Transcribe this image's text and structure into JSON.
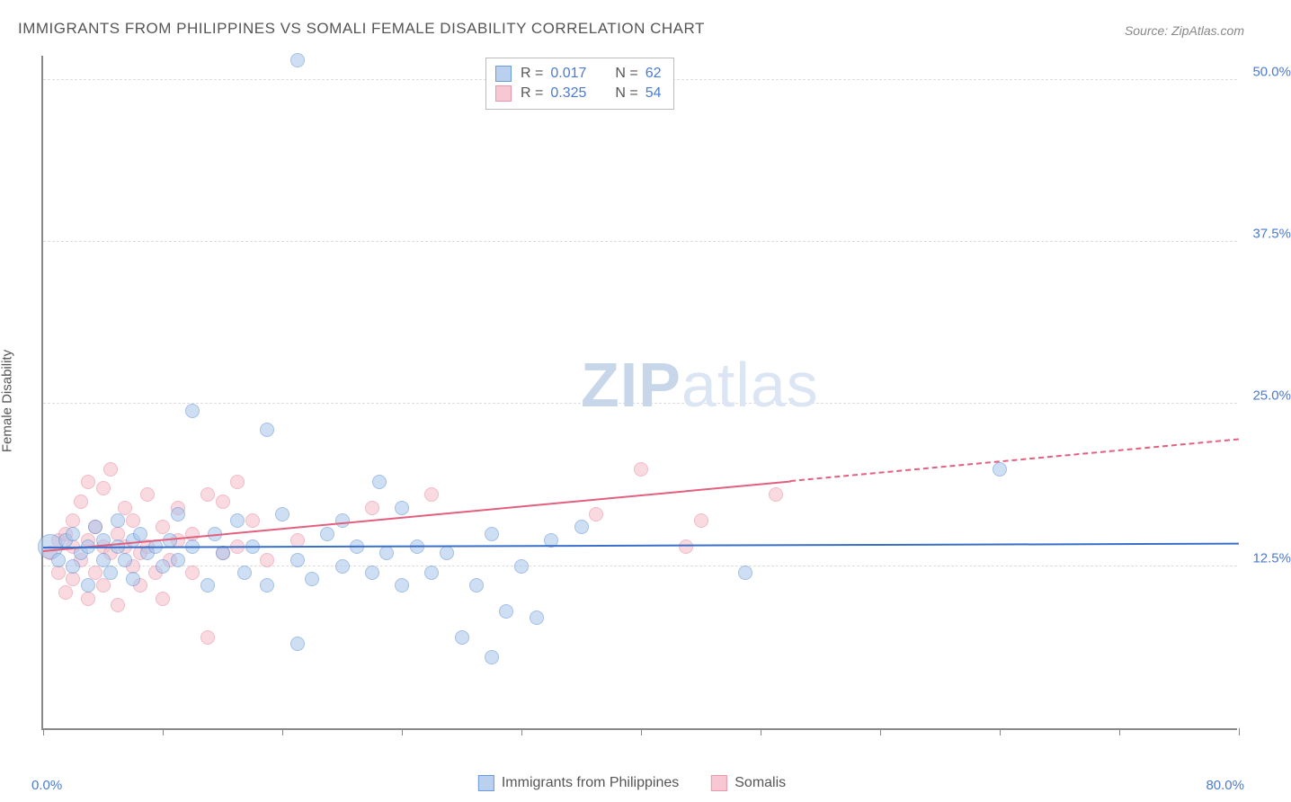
{
  "title": "IMMIGRANTS FROM PHILIPPINES VS SOMALI FEMALE DISABILITY CORRELATION CHART",
  "source_label": "Source:",
  "source_name": "ZipAtlas.com",
  "y_axis_title": "Female Disability",
  "watermark_bold": "ZIP",
  "watermark_light": "atlas",
  "chart": {
    "type": "scatter",
    "background_color": "#ffffff",
    "grid_color": "#dddddd",
    "axis_color": "#888888",
    "xlim": [
      0,
      80
    ],
    "ylim": [
      0,
      52
    ],
    "x_axis_min_label": "0.0%",
    "x_axis_max_label": "80.0%",
    "xtick_positions": [
      0,
      8,
      16,
      24,
      32,
      40,
      48,
      56,
      64,
      72,
      80
    ],
    "yticks": [
      {
        "value": 12.5,
        "label": "12.5%"
      },
      {
        "value": 25.0,
        "label": "25.0%"
      },
      {
        "value": 37.5,
        "label": "37.5%"
      },
      {
        "value": 50.0,
        "label": "50.0%"
      }
    ],
    "tick_label_color": "#4a7bd0",
    "point_radius": 8,
    "point_opacity": 0.55,
    "large_point_radius": 14
  },
  "series": [
    {
      "name": "Immigrants from Philippines",
      "color_fill": "#a8c5eb",
      "color_stroke": "#5a8cd4",
      "swatch_fill": "#b9d1ef",
      "swatch_border": "#6a9bdc",
      "R": "0.017",
      "N": "62",
      "trend": {
        "x1": 0,
        "y1": 13.9,
        "x2": 80,
        "y2": 14.2,
        "solid_until_x": 80,
        "color": "#3a6fc9"
      },
      "points": [
        {
          "x": 0.5,
          "y": 14,
          "r": 14
        },
        {
          "x": 1,
          "y": 13
        },
        {
          "x": 1.5,
          "y": 14.5
        },
        {
          "x": 2,
          "y": 12.5
        },
        {
          "x": 2,
          "y": 15
        },
        {
          "x": 2.5,
          "y": 13.5
        },
        {
          "x": 3,
          "y": 14
        },
        {
          "x": 3,
          "y": 11
        },
        {
          "x": 3.5,
          "y": 15.5
        },
        {
          "x": 4,
          "y": 13
        },
        {
          "x": 4,
          "y": 14.5
        },
        {
          "x": 4.5,
          "y": 12
        },
        {
          "x": 5,
          "y": 14
        },
        {
          "x": 5,
          "y": 16
        },
        {
          "x": 5.5,
          "y": 13
        },
        {
          "x": 6,
          "y": 14.5
        },
        {
          "x": 6,
          "y": 11.5
        },
        {
          "x": 6.5,
          "y": 15
        },
        {
          "x": 7,
          "y": 13.5
        },
        {
          "x": 7.5,
          "y": 14
        },
        {
          "x": 8,
          "y": 12.5
        },
        {
          "x": 8.5,
          "y": 14.5
        },
        {
          "x": 9,
          "y": 13
        },
        {
          "x": 9,
          "y": 16.5
        },
        {
          "x": 10,
          "y": 14
        },
        {
          "x": 10,
          "y": 24.5
        },
        {
          "x": 11,
          "y": 11
        },
        {
          "x": 11.5,
          "y": 15
        },
        {
          "x": 12,
          "y": 13.5
        },
        {
          "x": 13,
          "y": 16
        },
        {
          "x": 13.5,
          "y": 12
        },
        {
          "x": 14,
          "y": 14
        },
        {
          "x": 15,
          "y": 23
        },
        {
          "x": 15,
          "y": 11
        },
        {
          "x": 16,
          "y": 16.5
        },
        {
          "x": 17,
          "y": 6.5
        },
        {
          "x": 17,
          "y": 13
        },
        {
          "x": 17,
          "y": 51.5
        },
        {
          "x": 18,
          "y": 11.5
        },
        {
          "x": 19,
          "y": 15
        },
        {
          "x": 20,
          "y": 12.5
        },
        {
          "x": 20,
          "y": 16
        },
        {
          "x": 21,
          "y": 14
        },
        {
          "x": 22,
          "y": 12
        },
        {
          "x": 22.5,
          "y": 19
        },
        {
          "x": 23,
          "y": 13.5
        },
        {
          "x": 24,
          "y": 11
        },
        {
          "x": 24,
          "y": 17
        },
        {
          "x": 25,
          "y": 14
        },
        {
          "x": 26,
          "y": 12
        },
        {
          "x": 27,
          "y": 13.5
        },
        {
          "x": 28,
          "y": 7
        },
        {
          "x": 29,
          "y": 11
        },
        {
          "x": 30,
          "y": 15
        },
        {
          "x": 30,
          "y": 5.5
        },
        {
          "x": 31,
          "y": 9
        },
        {
          "x": 32,
          "y": 12.5
        },
        {
          "x": 33,
          "y": 8.5
        },
        {
          "x": 34,
          "y": 14.5
        },
        {
          "x": 36,
          "y": 15.5
        },
        {
          "x": 47,
          "y": 12
        },
        {
          "x": 64,
          "y": 20
        }
      ]
    },
    {
      "name": "Somalis",
      "color_fill": "#f4bcc8",
      "color_stroke": "#e8849c",
      "swatch_fill": "#f7c8d3",
      "swatch_border": "#eb98ab",
      "R": "0.325",
      "N": "54",
      "trend": {
        "x1": 0,
        "y1": 13.6,
        "x2": 80,
        "y2": 22.2,
        "solid_until_x": 50,
        "color": "#e35f7e"
      },
      "points": [
        {
          "x": 0.5,
          "y": 13.5
        },
        {
          "x": 1,
          "y": 14.5
        },
        {
          "x": 1,
          "y": 12
        },
        {
          "x": 1.5,
          "y": 15
        },
        {
          "x": 1.5,
          "y": 10.5
        },
        {
          "x": 2,
          "y": 14
        },
        {
          "x": 2,
          "y": 16
        },
        {
          "x": 2,
          "y": 11.5
        },
        {
          "x": 2.5,
          "y": 13
        },
        {
          "x": 2.5,
          "y": 17.5
        },
        {
          "x": 3,
          "y": 14.5
        },
        {
          "x": 3,
          "y": 19
        },
        {
          "x": 3,
          "y": 10
        },
        {
          "x": 3.5,
          "y": 15.5
        },
        {
          "x": 3.5,
          "y": 12
        },
        {
          "x": 4,
          "y": 14
        },
        {
          "x": 4,
          "y": 18.5
        },
        {
          "x": 4,
          "y": 11
        },
        {
          "x": 4.5,
          "y": 13.5
        },
        {
          "x": 4.5,
          "y": 20
        },
        {
          "x": 5,
          "y": 15
        },
        {
          "x": 5,
          "y": 9.5
        },
        {
          "x": 5.5,
          "y": 14
        },
        {
          "x": 5.5,
          "y": 17
        },
        {
          "x": 6,
          "y": 12.5
        },
        {
          "x": 6,
          "y": 16
        },
        {
          "x": 6.5,
          "y": 13.5
        },
        {
          "x": 6.5,
          "y": 11
        },
        {
          "x": 7,
          "y": 18
        },
        {
          "x": 7,
          "y": 14
        },
        {
          "x": 7.5,
          "y": 12
        },
        {
          "x": 8,
          "y": 15.5
        },
        {
          "x": 8,
          "y": 10
        },
        {
          "x": 8.5,
          "y": 13
        },
        {
          "x": 9,
          "y": 14.5
        },
        {
          "x": 9,
          "y": 17
        },
        {
          "x": 10,
          "y": 12
        },
        {
          "x": 10,
          "y": 15
        },
        {
          "x": 11,
          "y": 7
        },
        {
          "x": 11,
          "y": 18
        },
        {
          "x": 12,
          "y": 13.5
        },
        {
          "x": 12,
          "y": 17.5
        },
        {
          "x": 13,
          "y": 19
        },
        {
          "x": 13,
          "y": 14
        },
        {
          "x": 14,
          "y": 16
        },
        {
          "x": 15,
          "y": 13
        },
        {
          "x": 17,
          "y": 14.5
        },
        {
          "x": 22,
          "y": 17
        },
        {
          "x": 26,
          "y": 18
        },
        {
          "x": 37,
          "y": 16.5
        },
        {
          "x": 40,
          "y": 20
        },
        {
          "x": 43,
          "y": 14
        },
        {
          "x": 44,
          "y": 16
        },
        {
          "x": 49,
          "y": 18
        }
      ]
    }
  ],
  "legend_top": {
    "r_label": "R =",
    "n_label": "N ="
  },
  "legend_bottom_labels": [
    "Immigrants from Philippines",
    "Somalis"
  ]
}
